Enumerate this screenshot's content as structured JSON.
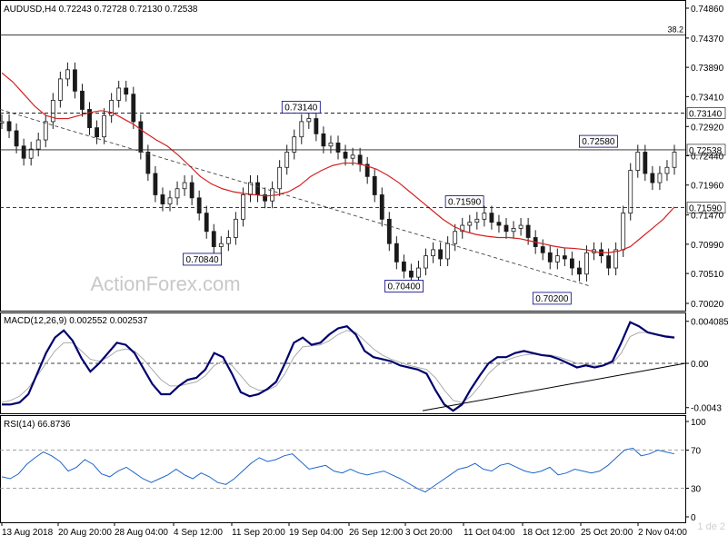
{
  "chart_data": [
    {
      "type": "candlestick",
      "title": "AUDUSD,H4  0.72243  0.72728  0.72130  0.72538",
      "symbol": "AUDUSD",
      "timeframe": "H4",
      "ohlc": {
        "open": 0.72243,
        "high": 0.72728,
        "low": 0.7213,
        "close": 0.72538
      },
      "ylim": [
        0.7002,
        0.7486
      ],
      "y_ticks": [
        "0.74860",
        "0.74370",
        "0.73890",
        "0.73410",
        "0.72920",
        "0.72440",
        "0.71960",
        "0.71470",
        "0.70990",
        "0.70510",
        "0.70020"
      ],
      "x_ticks": [
        "13 Aug 2018",
        "20 Aug 20:00",
        "28 Aug 04:00",
        "4 Sep 12:00",
        "11 Sep 20:00",
        "19 Sep 04:00",
        "26 Sep 12:00",
        "3 Oct 20:00",
        "11 Oct 04:00",
        "18 Oct 12:00",
        "25 Oct 20:00",
        "2 Nov 04:00"
      ],
      "close_series": [
        0.73,
        0.7285,
        0.726,
        0.724,
        0.7255,
        0.727,
        0.73,
        0.7335,
        0.737,
        0.7385,
        0.735,
        0.732,
        0.729,
        0.7275,
        0.731,
        0.7335,
        0.7355,
        0.7345,
        0.73,
        0.725,
        0.7215,
        0.718,
        0.7165,
        0.7175,
        0.719,
        0.72,
        0.7175,
        0.715,
        0.712,
        0.7095,
        0.71,
        0.711,
        0.714,
        0.718,
        0.72,
        0.718,
        0.717,
        0.719,
        0.7225,
        0.725,
        0.7275,
        0.73,
        0.7305,
        0.728,
        0.726,
        0.7265,
        0.725,
        0.724,
        0.7245,
        0.723,
        0.721,
        0.718,
        0.714,
        0.71,
        0.707,
        0.7055,
        0.7045,
        0.706,
        0.708,
        0.709,
        0.7075,
        0.71,
        0.712,
        0.713,
        0.7135,
        0.714,
        0.715,
        0.7135,
        0.713,
        0.712,
        0.7125,
        0.713,
        0.711,
        0.7095,
        0.7085,
        0.707,
        0.708,
        0.7075,
        0.706,
        0.705,
        0.7085,
        0.709,
        0.708,
        0.706,
        0.709,
        0.715,
        0.722,
        0.725,
        0.7215,
        0.72,
        0.7215,
        0.7225,
        0.725
      ],
      "ma_series": [
        0.738,
        0.7365,
        0.7345,
        0.7325,
        0.731,
        0.7305,
        0.7305,
        0.731,
        0.7315,
        0.7318,
        0.7315,
        0.7305,
        0.7295,
        0.7282,
        0.727,
        0.726,
        0.7245,
        0.7228,
        0.721,
        0.7198,
        0.719,
        0.7185,
        0.7182,
        0.718,
        0.7178,
        0.718,
        0.7185,
        0.7195,
        0.721,
        0.722,
        0.7228,
        0.7232,
        0.7232,
        0.7228,
        0.7222,
        0.7212,
        0.72,
        0.7185,
        0.717,
        0.7155,
        0.714,
        0.7128,
        0.712,
        0.7115,
        0.7112,
        0.711,
        0.711,
        0.7108,
        0.7104,
        0.71,
        0.7096,
        0.7093,
        0.7092,
        0.709,
        0.7086,
        0.7085,
        0.7088,
        0.7095,
        0.711,
        0.7125,
        0.714,
        0.716
      ],
      "levels": [
        {
          "label": "38.2",
          "value": 0.7442,
          "style": "solid"
        },
        {
          "label": "0.73140",
          "value": 0.7314,
          "style": "dashed"
        },
        {
          "label": "0.72538",
          "value": 0.72538,
          "style": "solid"
        },
        {
          "label": "0.71590",
          "value": 0.7159,
          "style": "dashed"
        }
      ],
      "annotations": [
        {
          "label": "0.73140",
          "value": 0.7314
        },
        {
          "label": "0.72580",
          "value": 0.7258
        },
        {
          "label": "0.71590",
          "value": 0.7159
        },
        {
          "label": "0.70840",
          "value": 0.7084
        },
        {
          "label": "0.70400",
          "value": 0.704
        },
        {
          "label": "0.70200",
          "value": 0.702
        }
      ],
      "colors": {
        "candle": "#1a1a1a",
        "ma": "#d42020",
        "level": "#222222",
        "label_border": "#000080"
      }
    },
    {
      "type": "line",
      "title": "MACD(12,26,9) 0.002552 0.002537",
      "ylim": [
        -0.0045,
        0.0045
      ],
      "y_ticks": [
        "0.004085",
        "0.00",
        "-0.0043"
      ],
      "zero_line": 0.0,
      "macd_series": [
        -0.004,
        -0.004,
        -0.0038,
        -0.003,
        -0.001,
        0.001,
        0.0025,
        0.0032,
        0.0022,
        0.0005,
        -0.0008,
        0.0,
        0.001,
        0.002,
        0.0018,
        0.001,
        -0.0005,
        -0.002,
        -0.003,
        -0.003,
        -0.0022,
        -0.0016,
        -0.0014,
        -0.0006,
        0.001,
        0.0006,
        -0.001,
        -0.0028,
        -0.0032,
        -0.003,
        -0.0025,
        -0.0018,
        0.0,
        0.002,
        0.0025,
        0.0018,
        0.002,
        0.0028,
        0.0034,
        0.0036,
        0.0028,
        0.0012,
        0.0006,
        0.0004,
        0.0002,
        -0.0002,
        -0.0004,
        -0.0006,
        -0.001,
        -0.0026,
        -0.004,
        -0.0046,
        -0.004,
        -0.0025,
        -0.0012,
        0.0,
        0.0006,
        0.0006,
        0.001,
        0.0012,
        0.001,
        0.0008,
        0.0007,
        0.0004,
        0.0,
        -0.0004,
        -0.0002,
        -0.0004,
        -0.0002,
        0.0002,
        0.002,
        0.004,
        0.0036,
        0.003,
        0.0028,
        0.0026,
        0.0025
      ],
      "signal_series": [
        -0.0038,
        -0.0036,
        -0.0032,
        -0.0024,
        -0.0012,
        0.0,
        0.0012,
        0.002,
        0.002,
        0.0012,
        0.0004,
        0.0002,
        0.0006,
        0.0012,
        0.0014,
        0.0012,
        0.0004,
        -0.0006,
        -0.0016,
        -0.0022,
        -0.0022,
        -0.002,
        -0.0018,
        -0.0012,
        -0.0002,
        0.0002,
        -0.0002,
        -0.0012,
        -0.0022,
        -0.0026,
        -0.0026,
        -0.0022,
        -0.001,
        0.0006,
        0.0016,
        0.0017,
        0.0018,
        0.0022,
        0.0028,
        0.0032,
        0.003,
        0.0022,
        0.0014,
        0.0008,
        0.0004,
        0.0001,
        -0.0002,
        -0.0004,
        -0.0006,
        -0.0014,
        -0.0026,
        -0.0036,
        -0.0038,
        -0.0032,
        -0.0022,
        -0.001,
        -0.0002,
        0.0003,
        0.0006,
        0.0008,
        0.0009,
        0.0008,
        0.0008,
        0.0006,
        0.0003,
        0.0,
        -0.0001,
        -0.0002,
        -0.0002,
        0.0,
        0.001,
        0.0026,
        0.003,
        0.003,
        0.0028,
        0.0027,
        0.0026
      ],
      "colors": {
        "macd": "#00006e",
        "signal": "#aaaaaa",
        "trendline": "#000000"
      }
    },
    {
      "type": "line",
      "title": "RSI(14) 66.8736",
      "ylim": [
        0,
        100
      ],
      "y_ticks": [
        "100",
        "70",
        "30",
        "0"
      ],
      "levels": [
        70,
        30
      ],
      "rsi_series": [
        42,
        40,
        45,
        55,
        62,
        68,
        64,
        58,
        48,
        52,
        60,
        55,
        45,
        42,
        48,
        52,
        46,
        40,
        36,
        40,
        44,
        50,
        44,
        40,
        46,
        42,
        36,
        34,
        40,
        48,
        56,
        62,
        58,
        60,
        64,
        66,
        58,
        50,
        52,
        54,
        48,
        46,
        50,
        46,
        44,
        46,
        48,
        44,
        40,
        35,
        30,
        26,
        32,
        38,
        44,
        50,
        52,
        56,
        50,
        48,
        54,
        56,
        52,
        48,
        46,
        48,
        52,
        44,
        46,
        50,
        48,
        46,
        48,
        54,
        62,
        70,
        72,
        64,
        66,
        70,
        68,
        66
      ],
      "colors": {
        "rsi": "#1f66c8",
        "level": "#888888"
      }
    }
  ],
  "watermark": "ActionForex.com",
  "page_indicator": "1 de 2"
}
